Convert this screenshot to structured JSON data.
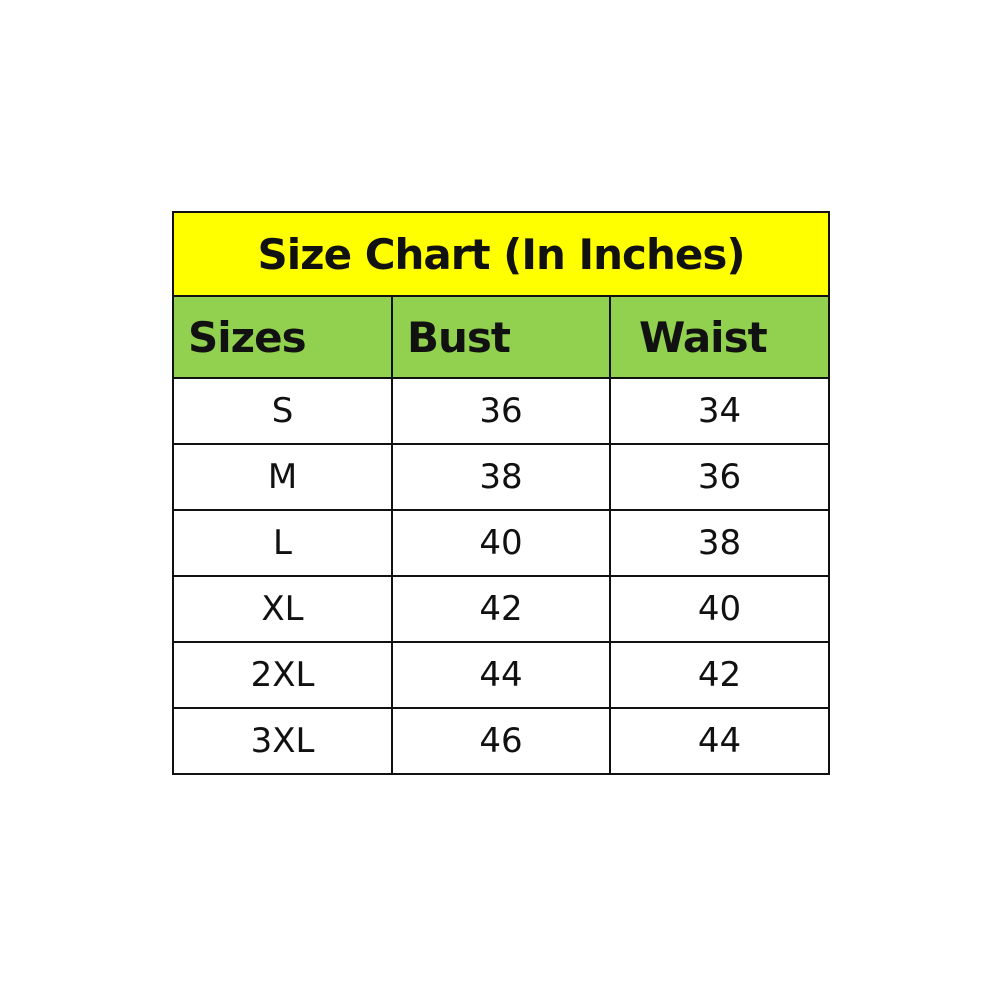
{
  "colors": {
    "title_bg": "#FFFF00",
    "header_bg": "#92D050",
    "border": "#111111"
  },
  "chart_data": {
    "type": "table",
    "title": "Size Chart (In Inches)",
    "columns": [
      "Sizes",
      "Bust",
      "Waist"
    ],
    "rows": [
      [
        "S",
        "36",
        "34"
      ],
      [
        "M",
        "38",
        "36"
      ],
      [
        "L",
        "40",
        "38"
      ],
      [
        "XL",
        "42",
        "40"
      ],
      [
        "2XL",
        "44",
        "42"
      ],
      [
        "3XL",
        "46",
        "44"
      ]
    ]
  }
}
